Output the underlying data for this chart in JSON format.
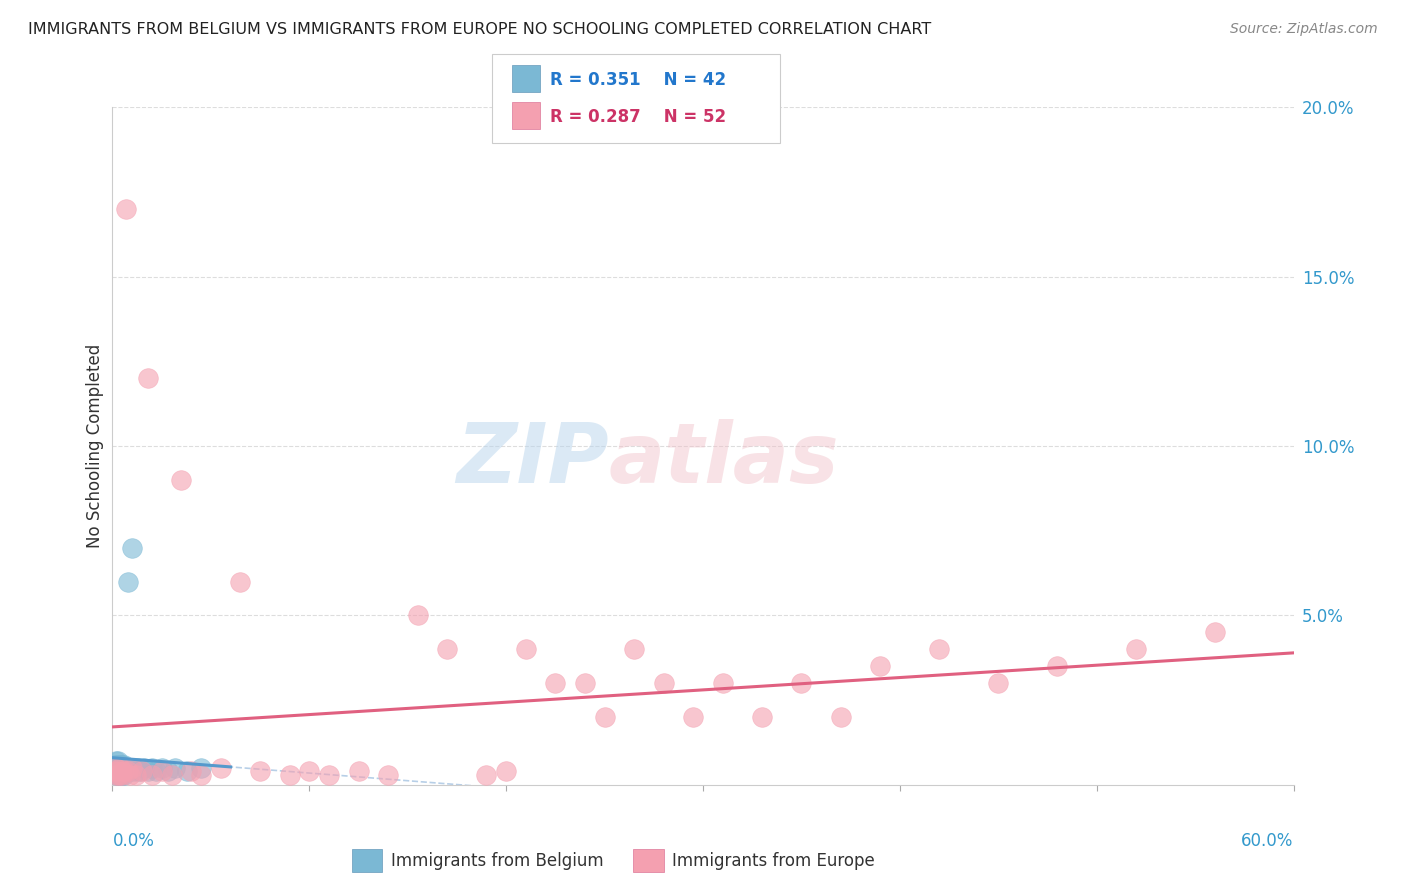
{
  "title": "IMMIGRANTS FROM BELGIUM VS IMMIGRANTS FROM EUROPE NO SCHOOLING COMPLETED CORRELATION CHART",
  "source": "Source: ZipAtlas.com",
  "ylabel": "No Schooling Completed",
  "watermark_zip": "ZIP",
  "watermark_atlas": "atlas",
  "legend_blue_r": "R = 0.351",
  "legend_blue_n": "N = 42",
  "legend_pink_r": "R = 0.287",
  "legend_pink_n": "N = 52",
  "legend_label_blue": "Immigrants from Belgium",
  "legend_label_pink": "Immigrants from Europe",
  "xlim": [
    0.0,
    0.6
  ],
  "ylim": [
    0.0,
    0.2
  ],
  "yticks": [
    0.0,
    0.05,
    0.1,
    0.15,
    0.2
  ],
  "ytick_labels_right": [
    "",
    "5.0%",
    "10.0%",
    "15.0%",
    "20.0%"
  ],
  "color_blue": "#7BB8D4",
  "color_pink": "#F4A0B0",
  "trend_blue_color": "#5599CC",
  "trend_pink_color": "#E06080",
  "grid_color": "#DDDDDD",
  "blue_x": [
    0.001,
    0.001,
    0.002,
    0.002,
    0.002,
    0.002,
    0.003,
    0.003,
    0.003,
    0.003,
    0.003,
    0.004,
    0.004,
    0.004,
    0.004,
    0.005,
    0.005,
    0.005,
    0.005,
    0.006,
    0.006,
    0.006,
    0.007,
    0.007,
    0.008,
    0.008,
    0.009,
    0.01,
    0.01,
    0.011,
    0.012,
    0.013,
    0.014,
    0.016,
    0.018,
    0.02,
    0.022,
    0.025,
    0.028,
    0.032,
    0.038,
    0.045
  ],
  "blue_y": [
    0.005,
    0.006,
    0.003,
    0.005,
    0.006,
    0.007,
    0.003,
    0.004,
    0.005,
    0.006,
    0.007,
    0.003,
    0.004,
    0.005,
    0.006,
    0.003,
    0.004,
    0.005,
    0.006,
    0.003,
    0.005,
    0.006,
    0.004,
    0.005,
    0.004,
    0.06,
    0.005,
    0.004,
    0.07,
    0.005,
    0.004,
    0.005,
    0.004,
    0.005,
    0.004,
    0.005,
    0.004,
    0.005,
    0.004,
    0.005,
    0.004,
    0.005
  ],
  "pink_x": [
    0.001,
    0.002,
    0.002,
    0.003,
    0.003,
    0.004,
    0.004,
    0.005,
    0.005,
    0.006,
    0.007,
    0.008,
    0.009,
    0.01,
    0.012,
    0.015,
    0.018,
    0.02,
    0.025,
    0.03,
    0.035,
    0.04,
    0.045,
    0.055,
    0.065,
    0.075,
    0.09,
    0.1,
    0.11,
    0.125,
    0.14,
    0.155,
    0.17,
    0.19,
    0.2,
    0.21,
    0.225,
    0.24,
    0.25,
    0.265,
    0.28,
    0.295,
    0.31,
    0.33,
    0.35,
    0.37,
    0.39,
    0.42,
    0.45,
    0.48,
    0.52,
    0.56
  ],
  "pink_y": [
    0.004,
    0.003,
    0.005,
    0.003,
    0.004,
    0.003,
    0.005,
    0.004,
    0.003,
    0.004,
    0.17,
    0.004,
    0.003,
    0.005,
    0.003,
    0.004,
    0.12,
    0.003,
    0.004,
    0.003,
    0.09,
    0.004,
    0.003,
    0.005,
    0.06,
    0.004,
    0.003,
    0.004,
    0.003,
    0.004,
    0.003,
    0.05,
    0.04,
    0.003,
    0.004,
    0.04,
    0.03,
    0.03,
    0.02,
    0.04,
    0.03,
    0.02,
    0.03,
    0.02,
    0.03,
    0.02,
    0.035,
    0.04,
    0.03,
    0.035,
    0.04,
    0.045
  ]
}
